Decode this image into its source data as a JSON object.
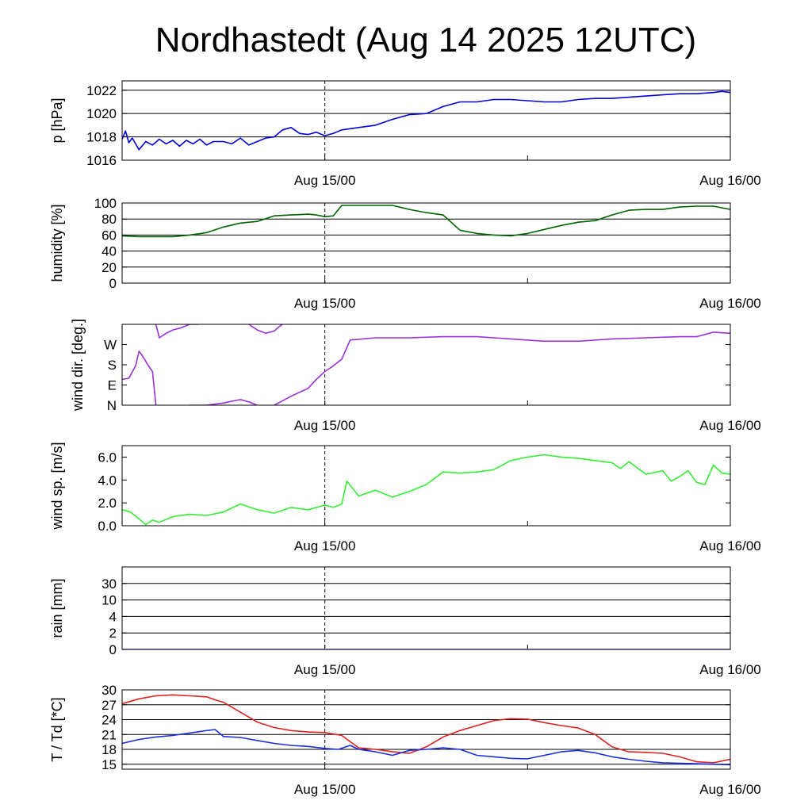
{
  "chart_data": {
    "title": "Nordhastedt (Aug 14 2025 12UTC)",
    "x_axis": {
      "type": "time",
      "range_hours": [
        0,
        36
      ],
      "ticks": [
        {
          "hour": 12,
          "label": "Aug 15/00"
        },
        {
          "hour": 36,
          "label": "Aug 16/00"
        }
      ],
      "minor_tick_hours": [
        24
      ],
      "dashed_marker_hour": 12
    },
    "panels": [
      {
        "id": "pressure",
        "type": "line",
        "ylabel": "p [hPa]",
        "ylim": [
          1016,
          1022.8
        ],
        "yticks": [
          1016,
          1018,
          1020,
          1022
        ],
        "ytick_labels": [
          "1016",
          "1018",
          "1020",
          "1022"
        ],
        "grid": [
          1018,
          1020,
          1022
        ],
        "series": [
          {
            "name": "pressure",
            "color": "#0000dd",
            "x": [
              0,
              0.2,
              0.4,
              0.6,
              1.0,
              1.4,
              1.8,
              2.2,
              2.6,
              3.0,
              3.4,
              3.8,
              4.2,
              4.6,
              5.0,
              5.4,
              6.0,
              6.5,
              7.0,
              7.5,
              8.0,
              8.5,
              9.0,
              9.5,
              10.0,
              10.5,
              11.0,
              11.5,
              12.0,
              12.5,
              13.0,
              14.0,
              15.0,
              16.0,
              17.0,
              18.0,
              19.0,
              20.0,
              21.0,
              22.0,
              23.0,
              24.0,
              25.0,
              26.0,
              27.0,
              28.0,
              29.0,
              30.0,
              31.0,
              32.0,
              33.0,
              34.0,
              35.0,
              35.5,
              36.0
            ],
            "y": [
              1017.8,
              1018.5,
              1017.5,
              1017.9,
              1016.9,
              1017.6,
              1017.3,
              1017.8,
              1017.4,
              1017.7,
              1017.2,
              1017.7,
              1017.4,
              1017.8,
              1017.3,
              1017.6,
              1017.6,
              1017.4,
              1017.9,
              1017.3,
              1017.6,
              1017.9,
              1018.0,
              1018.6,
              1018.8,
              1018.3,
              1018.2,
              1018.4,
              1018.1,
              1018.3,
              1018.6,
              1018.8,
              1019.0,
              1019.5,
              1019.9,
              1020.0,
              1020.6,
              1021.0,
              1021.0,
              1021.2,
              1021.2,
              1021.1,
              1021.0,
              1021.0,
              1021.2,
              1021.3,
              1021.3,
              1021.4,
              1021.5,
              1021.6,
              1021.7,
              1021.7,
              1021.8,
              1021.9,
              1021.8
            ]
          }
        ]
      },
      {
        "id": "humidity",
        "type": "line",
        "ylabel": "humidity [%]",
        "ylim": [
          0,
          100
        ],
        "yticks": [
          0,
          20,
          40,
          60,
          80,
          100
        ],
        "ytick_labels": [
          "0",
          "20",
          "40",
          "60",
          "80",
          "100"
        ],
        "grid": [
          20,
          40,
          60,
          80
        ],
        "series": [
          {
            "name": "relative humidity",
            "color": "#006400",
            "x": [
              0,
              1,
              2,
              3,
              4,
              5,
              6,
              7,
              8,
              9,
              10,
              11,
              11.5,
              12,
              12.5,
              13,
              14,
              15,
              16,
              17,
              18,
              19,
              20,
              21,
              22,
              23,
              24,
              25,
              26,
              27,
              28,
              29,
              30,
              31,
              32,
              33,
              34,
              35,
              36
            ],
            "y": [
              59,
              58,
              58,
              58,
              60,
              63,
              70,
              75,
              77,
              84,
              85,
              86,
              85,
              83,
              84,
              97,
              97,
              97,
              97,
              92,
              88,
              85,
              66,
              62,
              60,
              59,
              62,
              67,
              72,
              76,
              78,
              85,
              91,
              92,
              92,
              95,
              96,
              96,
              92
            ]
          }
        ]
      },
      {
        "id": "wind_direction",
        "type": "line",
        "ylabel": "wind dir. [deg.]",
        "ylim": [
          0,
          360
        ],
        "yticks": [
          0,
          90,
          180,
          270
        ],
        "ytick_labels": [
          "N",
          "E",
          "S",
          "W"
        ],
        "grid": [],
        "series": [
          {
            "name": "wind direction (segment 1)",
            "color": "#9a30d8",
            "x": [
              0,
              0.4,
              0.8,
              1.0,
              1.2,
              1.6,
              1.8,
              2.0
            ],
            "y": [
              115,
              120,
              175,
              240,
              220,
              170,
              150,
              0
            ]
          },
          {
            "name": "wind direction (segment 2)",
            "color": "#9a30d8",
            "x": [
              2.0,
              2.2,
              2.6,
              3.0,
              3.5,
              4.0,
              4.5
            ],
            "y": [
              360,
              300,
              320,
              335,
              345,
              360,
              360
            ]
          },
          {
            "name": "wind direction (segment 3)",
            "color": "#9a30d8",
            "x": [
              7.5,
              8.0,
              8.5,
              9.0,
              9.3,
              9.5
            ],
            "y": [
              360,
              335,
              320,
              330,
              350,
              360
            ]
          },
          {
            "name": "wind direction (segment 4)",
            "color": "#9a30d8",
            "x": [
              4.0,
              5.0,
              6.0,
              7.0,
              7.5,
              8.0
            ],
            "y": [
              0,
              0,
              10,
              25,
              15,
              0
            ]
          },
          {
            "name": "wind direction (segment 5)",
            "color": "#9a30d8",
            "x": [
              9.0,
              10.0,
              11.0,
              11.5,
              12.0,
              12.5,
              13.0,
              13.5,
              15.0,
              17.0,
              19.0,
              21.0,
              23.0,
              25.0,
              27.0,
              29.0,
              31.0,
              33.0,
              34.0,
              35.0,
              36.0
            ],
            "y": [
              0,
              40,
              75,
              115,
              150,
              175,
              205,
              290,
              300,
              300,
              305,
              305,
              295,
              285,
              285,
              295,
              300,
              305,
              305,
              325,
              320
            ]
          }
        ]
      },
      {
        "id": "wind_speed",
        "type": "line",
        "ylabel": "wind sp. [m/s]",
        "ylim": [
          0,
          7
        ],
        "yticks": [
          0,
          2,
          4,
          6
        ],
        "ytick_labels": [
          "0.0",
          "2.0",
          "4.0",
          "6.0"
        ],
        "grid": [],
        "series": [
          {
            "name": "wind speed",
            "color": "#33ee33",
            "x": [
              0,
              0.5,
              1.0,
              1.4,
              1.8,
              2.2,
              3.0,
              4.0,
              5.0,
              6.0,
              7.0,
              8.0,
              9.0,
              10.0,
              11.0,
              12.0,
              12.5,
              13.0,
              13.3,
              14.0,
              15.0,
              16.0,
              17.0,
              18.0,
              19.0,
              20.0,
              21.0,
              22.0,
              23.0,
              24.0,
              25.0,
              26.0,
              27.0,
              28.0,
              29.0,
              29.5,
              30.0,
              31.0,
              32.0,
              32.5,
              33.0,
              33.5,
              34.0,
              34.5,
              35.0,
              35.5,
              36.0
            ],
            "y": [
              1.4,
              1.2,
              0.6,
              0.1,
              0.5,
              0.3,
              0.8,
              1.0,
              0.9,
              1.2,
              1.9,
              1.4,
              1.1,
              1.6,
              1.4,
              1.8,
              1.6,
              1.9,
              3.9,
              2.6,
              3.1,
              2.5,
              3.0,
              3.6,
              4.7,
              4.6,
              4.7,
              4.9,
              5.7,
              6.0,
              6.2,
              6.0,
              5.9,
              5.7,
              5.5,
              5.0,
              5.6,
              4.5,
              4.8,
              3.9,
              4.3,
              4.8,
              3.8,
              3.6,
              5.3,
              4.6,
              4.5
            ]
          }
        ]
      },
      {
        "id": "rain",
        "type": "line",
        "ylabel": "rain [mm]",
        "ylim": [
          0,
          5
        ],
        "yticks": [
          0,
          1,
          2,
          3,
          4,
          5
        ],
        "ytick_labels": [
          "0",
          "2",
          "4",
          "10",
          "30",
          ""
        ],
        "grid": [
          1,
          2,
          3,
          4
        ],
        "series": [
          {
            "name": "precipitation",
            "color": "#0000cc",
            "x": [
              0,
              36
            ],
            "y": [
              0,
              0
            ]
          }
        ]
      },
      {
        "id": "temperature",
        "type": "line",
        "ylabel": "T / Td [*C]",
        "ylim": [
          14,
          30
        ],
        "yticks": [
          15,
          18,
          21,
          24,
          27,
          30
        ],
        "ytick_labels": [
          "15",
          "18",
          "21",
          "24",
          "27",
          "30"
        ],
        "grid": [
          15,
          18,
          21,
          24,
          27
        ],
        "series": [
          {
            "name": "temperature",
            "color": "#e02020",
            "x": [
              0,
              1,
              2,
              3,
              4,
              5,
              5.5,
              6,
              7,
              8,
              9,
              10,
              11,
              12,
              13,
              14,
              15,
              16,
              17,
              18,
              19,
              20,
              21,
              22,
              23,
              24,
              25,
              26,
              27,
              28,
              29,
              30,
              31,
              32,
              33,
              34,
              35,
              36
            ],
            "y": [
              27.2,
              28.2,
              28.8,
              29.0,
              28.8,
              28.6,
              28.0,
              27.5,
              25.5,
              23.5,
              22.4,
              21.8,
              21.5,
              21.4,
              20.8,
              18.3,
              18.0,
              17.5,
              17.2,
              18.5,
              20.5,
              21.8,
              22.8,
              23.8,
              24.2,
              24.1,
              23.4,
              22.8,
              22.3,
              21.0,
              18.5,
              17.5,
              17.4,
              17.2,
              16.5,
              15.5,
              15.3,
              16.0
            ]
          },
          {
            "name": "dew point",
            "color": "#1a2ee0",
            "x": [
              0,
              1,
              2,
              3,
              4,
              5,
              5.5,
              6,
              7,
              8,
              9,
              10,
              11,
              12,
              12.8,
              13.5,
              14,
              15,
              16,
              17,
              18,
              19,
              20,
              21,
              22,
              23,
              24,
              25,
              26,
              27,
              28,
              29,
              30,
              31,
              32,
              33,
              34,
              35,
              36
            ],
            "y": [
              19.2,
              20.0,
              20.5,
              20.8,
              21.3,
              21.8,
              22.0,
              20.6,
              20.4,
              19.8,
              19.2,
              18.8,
              18.6,
              18.2,
              18.0,
              18.8,
              18.0,
              17.5,
              16.8,
              17.8,
              18.0,
              18.3,
              18.0,
              16.8,
              16.5,
              16.2,
              16.1,
              16.8,
              17.5,
              17.8,
              17.3,
              16.5,
              16.0,
              15.6,
              15.3,
              15.2,
              15.1,
              15.0,
              14.9
            ]
          }
        ]
      }
    ]
  }
}
